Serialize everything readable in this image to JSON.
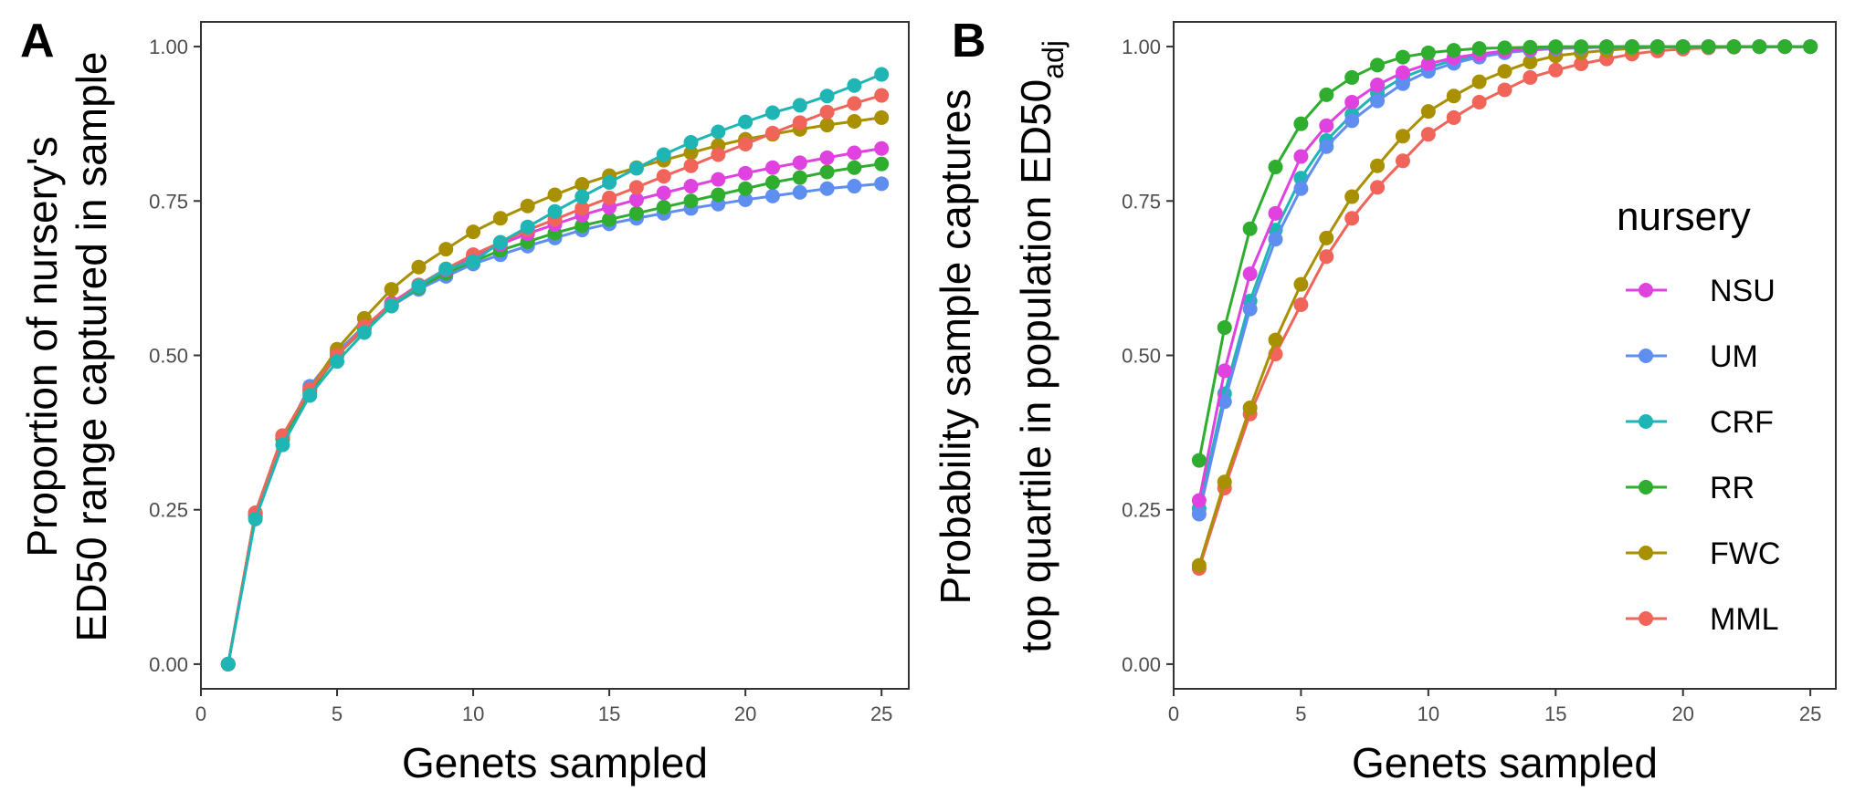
{
  "chart_data": [
    {
      "type": "line",
      "panel_label": "A",
      "ylabel": [
        "Proportion of nursery's",
        "ED50 range captured in sample"
      ],
      "xlabel": "Genets sampled",
      "xlim": [
        0,
        26
      ],
      "ylim": [
        -0.04,
        1.04
      ],
      "xticks": [
        0,
        5,
        10,
        15,
        20,
        25
      ],
      "xtick_labels": [
        "0",
        "5",
        "10",
        "15",
        "20",
        "25"
      ],
      "yticks": [
        0,
        0.25,
        0.5,
        0.75,
        1
      ],
      "ytick_labels": [
        "0.00",
        "0.25",
        "0.50",
        "0.75",
        "1.00"
      ],
      "grid": false,
      "x": [
        1,
        2,
        3,
        4,
        5,
        6,
        7,
        8,
        9,
        10,
        11,
        12,
        13,
        14,
        15,
        16,
        17,
        18,
        19,
        20,
        21,
        22,
        23,
        24,
        25
      ],
      "series": [
        {
          "name": "UM",
          "color": "#5E8EF0",
          "values": [
            0,
            0.24,
            0.365,
            0.45,
            0.505,
            0.548,
            0.58,
            0.607,
            0.628,
            0.648,
            0.663,
            0.677,
            0.69,
            0.703,
            0.713,
            0.722,
            0.73,
            0.738,
            0.745,
            0.752,
            0.758,
            0.764,
            0.77,
            0.774,
            0.778
          ]
        },
        {
          "name": "RR",
          "color": "#2EAD2E",
          "values": [
            0,
            0.24,
            0.365,
            0.44,
            0.5,
            0.543,
            0.58,
            0.61,
            0.633,
            0.652,
            0.67,
            0.684,
            0.698,
            0.71,
            0.72,
            0.73,
            0.74,
            0.75,
            0.76,
            0.77,
            0.78,
            0.788,
            0.797,
            0.804,
            0.81
          ]
        },
        {
          "name": "NSU",
          "color": "#E042E0",
          "values": [
            0,
            0.245,
            0.37,
            0.445,
            0.5,
            0.545,
            0.585,
            0.614,
            0.638,
            0.66,
            0.68,
            0.697,
            0.712,
            0.727,
            0.74,
            0.752,
            0.763,
            0.774,
            0.785,
            0.795,
            0.804,
            0.812,
            0.82,
            0.828,
            0.835
          ]
        },
        {
          "name": "FWC",
          "color": "#A89000",
          "values": [
            0,
            0.245,
            0.37,
            0.445,
            0.51,
            0.56,
            0.607,
            0.643,
            0.672,
            0.7,
            0.722,
            0.742,
            0.76,
            0.777,
            0.791,
            0.804,
            0.816,
            0.828,
            0.84,
            0.85,
            0.858,
            0.866,
            0.873,
            0.879,
            0.885
          ]
        },
        {
          "name": "MML",
          "color": "#F0645A",
          "values": [
            0,
            0.245,
            0.37,
            0.445,
            0.5,
            0.547,
            0.582,
            0.614,
            0.64,
            0.663,
            0.683,
            0.703,
            0.72,
            0.738,
            0.755,
            0.772,
            0.79,
            0.807,
            0.825,
            0.842,
            0.86,
            0.877,
            0.894,
            0.908,
            0.921
          ]
        },
        {
          "name": "CRF",
          "color": "#1FB5B5",
          "values": [
            0,
            0.235,
            0.355,
            0.435,
            0.49,
            0.537,
            0.58,
            0.612,
            0.64,
            0.652,
            0.683,
            0.708,
            0.733,
            0.757,
            0.78,
            0.803,
            0.825,
            0.845,
            0.862,
            0.878,
            0.893,
            0.905,
            0.92,
            0.937,
            0.955
          ]
        }
      ]
    },
    {
      "type": "line",
      "panel_label": "B",
      "ylabel": [
        "Probability sample captures",
        "top quartile in population ED50",
        "adj"
      ],
      "xlabel": "Genets sampled",
      "xlim": [
        0,
        26
      ],
      "ylim": [
        -0.04,
        1.04
      ],
      "xticks": [
        0,
        5,
        10,
        15,
        20,
        25
      ],
      "xtick_labels": [
        "0",
        "5",
        "10",
        "15",
        "20",
        "25"
      ],
      "yticks": [
        0,
        0.25,
        0.5,
        0.75,
        1
      ],
      "ytick_labels": [
        "0.00",
        "0.25",
        "0.50",
        "0.75",
        "1.00"
      ],
      "grid": false,
      "legend": {
        "title": "nursery",
        "placement": "right",
        "entries": [
          "NSU",
          "UM",
          "CRF",
          "RR",
          "FWC",
          "MML"
        ]
      },
      "x": [
        1,
        2,
        3,
        4,
        5,
        6,
        7,
        8,
        9,
        10,
        11,
        12,
        13,
        14,
        15,
        16,
        17,
        18,
        19,
        20,
        21,
        22,
        23,
        24,
        25
      ],
      "series": [
        {
          "name": "MML",
          "color": "#F0645A",
          "values": [
            0.155,
            0.285,
            0.405,
            0.502,
            0.582,
            0.66,
            0.722,
            0.772,
            0.815,
            0.858,
            0.885,
            0.91,
            0.93,
            0.95,
            0.962,
            0.972,
            0.98,
            0.988,
            0.993,
            0.996,
            0.998,
            0.999,
            1,
            1,
            1
          ]
        },
        {
          "name": "FWC",
          "color": "#A89000",
          "values": [
            0.16,
            0.295,
            0.415,
            0.525,
            0.615,
            0.69,
            0.757,
            0.807,
            0.855,
            0.895,
            0.92,
            0.943,
            0.96,
            0.975,
            0.985,
            0.99,
            0.994,
            0.997,
            0.999,
            1,
            1,
            1,
            1,
            1,
            1
          ]
        },
        {
          "name": "CRF",
          "color": "#1FB5B5",
          "values": [
            0.252,
            0.438,
            0.588,
            0.703,
            0.787,
            0.848,
            0.89,
            0.925,
            0.95,
            0.966,
            0.978,
            0.986,
            0.991,
            0.995,
            0.997,
            0.998,
            0.999,
            1,
            1,
            1,
            1,
            1,
            1,
            1,
            1
          ]
        },
        {
          "name": "UM",
          "color": "#5E8EF0",
          "values": [
            0.243,
            0.425,
            0.575,
            0.688,
            0.77,
            0.838,
            0.88,
            0.912,
            0.94,
            0.96,
            0.973,
            0.983,
            0.99,
            0.994,
            0.997,
            0.998,
            0.999,
            1,
            1,
            1,
            1,
            1,
            1,
            1,
            1
          ]
        },
        {
          "name": "NSU",
          "color": "#E042E0",
          "values": [
            0.265,
            0.475,
            0.632,
            0.73,
            0.822,
            0.872,
            0.91,
            0.938,
            0.958,
            0.972,
            0.982,
            0.988,
            0.993,
            0.996,
            0.998,
            0.999,
            1,
            1,
            1,
            1,
            1,
            1,
            1,
            1,
            1
          ]
        },
        {
          "name": "RR",
          "color": "#2EAD2E",
          "values": [
            0.33,
            0.545,
            0.705,
            0.805,
            0.875,
            0.922,
            0.95,
            0.97,
            0.983,
            0.99,
            0.994,
            0.997,
            0.998,
            0.999,
            1,
            1,
            1,
            1,
            1,
            1,
            1,
            1,
            1,
            1,
            1
          ]
        }
      ]
    }
  ]
}
